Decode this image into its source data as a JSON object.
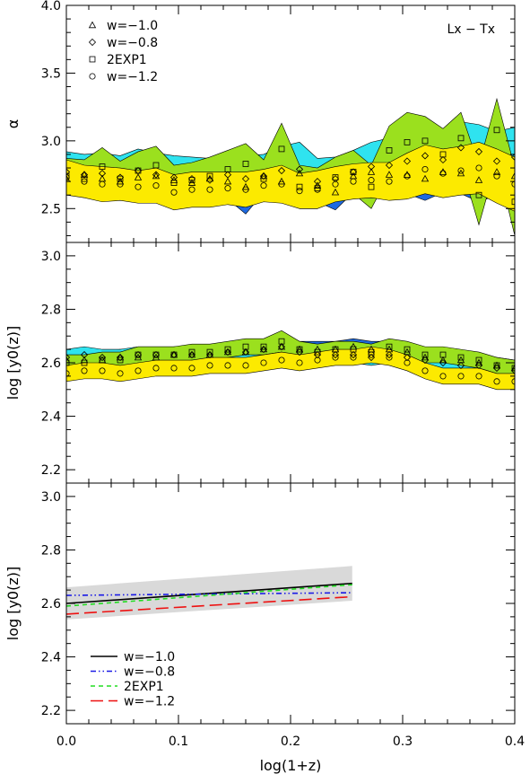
{
  "chart_data": [
    {
      "type": "area",
      "panel": "top",
      "xlim": [
        0.0,
        0.4
      ],
      "ylim": [
        2.25,
        4.0
      ],
      "ylabel": "α",
      "annotation": "Lx − Tx",
      "yticks": [
        "2.5",
        "3.0",
        "3.5",
        "4.0"
      ],
      "ytick_values": [
        2.5,
        3.0,
        3.5,
        4.0
      ],
      "legend": {
        "placement": "top-left",
        "entries": [
          {
            "label": "w=−1.0",
            "marker": "triangle"
          },
          {
            "label": "w=−0.8",
            "marker": "diamond"
          },
          {
            "label": "2EXP1",
            "marker": "square"
          },
          {
            "label": "w=−1.2",
            "marker": "circle"
          }
        ]
      },
      "x": [
        0.0,
        0.016,
        0.032,
        0.048,
        0.064,
        0.08,
        0.096,
        0.112,
        0.128,
        0.144,
        0.16,
        0.176,
        0.192,
        0.208,
        0.224,
        0.24,
        0.256,
        0.272,
        0.288,
        0.304,
        0.32,
        0.336,
        0.352,
        0.368,
        0.384,
        0.4
      ],
      "series": [
        {
          "name": "w=−1.0",
          "color": "#1e6ae0",
          "marker": "triangle",
          "values": [
            2.72,
            2.75,
            2.72,
            2.7,
            2.73,
            2.74,
            2.71,
            2.69,
            2.72,
            2.7,
            2.66,
            2.74,
            2.7,
            2.76,
            2.67,
            2.62,
            2.74,
            2.77,
            2.75,
            2.75,
            2.72,
            2.77,
            2.76,
            2.71,
            2.77,
            2.74
          ],
          "band_half_width": [
            0.11,
            0.11,
            0.11,
            0.12,
            0.11,
            0.12,
            0.12,
            0.11,
            0.12,
            0.13,
            0.2,
            0.12,
            0.14,
            0.16,
            0.12,
            0.13,
            0.12,
            0.14,
            0.13,
            0.14,
            0.16,
            0.15,
            0.15,
            0.16,
            0.17,
            0.16
          ]
        },
        {
          "name": "w=−0.8",
          "color": "#2fe3ef",
          "marker": "diamond",
          "values": [
            2.77,
            2.75,
            2.76,
            2.73,
            2.78,
            2.75,
            2.73,
            2.72,
            2.71,
            2.75,
            2.72,
            2.74,
            2.78,
            2.79,
            2.7,
            2.72,
            2.77,
            2.81,
            2.82,
            2.85,
            2.89,
            2.86,
            2.95,
            2.92,
            2.85,
            2.88
          ],
          "band_half_width": [
            0.15,
            0.15,
            0.15,
            0.16,
            0.16,
            0.16,
            0.16,
            0.16,
            0.16,
            0.17,
            0.17,
            0.16,
            0.18,
            0.2,
            0.17,
            0.16,
            0.16,
            0.18,
            0.2,
            0.22,
            0.2,
            0.2,
            0.19,
            0.2,
            0.22,
            0.22
          ]
        },
        {
          "name": "2EXP1",
          "color": "#9be01e",
          "marker": "square",
          "values": [
            2.74,
            2.72,
            2.81,
            2.72,
            2.78,
            2.82,
            2.69,
            2.71,
            2.74,
            2.79,
            2.83,
            2.72,
            2.94,
            2.66,
            2.65,
            2.73,
            2.77,
            2.66,
            2.93,
            2.99,
            3.0,
            2.9,
            3.02,
            2.6,
            3.08,
            2.55
          ],
          "band_half_width": [
            0.13,
            0.14,
            0.14,
            0.13,
            0.14,
            0.14,
            0.13,
            0.13,
            0.14,
            0.14,
            0.15,
            0.14,
            0.19,
            0.16,
            0.15,
            0.15,
            0.16,
            0.16,
            0.18,
            0.22,
            0.18,
            0.19,
            0.19,
            0.22,
            0.23,
            0.25
          ]
        },
        {
          "name": "w=−1.2",
          "color": "#fcea00",
          "marker": "circle",
          "values": [
            2.73,
            2.7,
            2.68,
            2.68,
            2.66,
            2.67,
            2.62,
            2.64,
            2.64,
            2.65,
            2.64,
            2.67,
            2.68,
            2.63,
            2.64,
            2.68,
            2.7,
            2.71,
            2.7,
            2.74,
            2.79,
            2.76,
            2.78,
            2.8,
            2.74,
            2.68
          ],
          "band_half_width": [
            0.13,
            0.12,
            0.13,
            0.12,
            0.12,
            0.13,
            0.13,
            0.13,
            0.13,
            0.12,
            0.13,
            0.12,
            0.14,
            0.13,
            0.14,
            0.13,
            0.13,
            0.13,
            0.14,
            0.17,
            0.18,
            0.18,
            0.18,
            0.19,
            0.2,
            0.2
          ]
        }
      ]
    },
    {
      "type": "area",
      "panel": "middle",
      "xlim": [
        0.0,
        0.4
      ],
      "ylim": [
        2.15,
        3.05
      ],
      "ylabel": "log [y0(z)]",
      "yticks": [
        "2.2",
        "2.4",
        "2.6",
        "2.8",
        "3.0"
      ],
      "ytick_values": [
        2.2,
        2.4,
        2.6,
        2.8,
        3.0
      ],
      "x": [
        0.0,
        0.016,
        0.032,
        0.048,
        0.064,
        0.08,
        0.096,
        0.112,
        0.128,
        0.144,
        0.16,
        0.176,
        0.192,
        0.208,
        0.224,
        0.24,
        0.256,
        0.272,
        0.288,
        0.304,
        0.32,
        0.336,
        0.352,
        0.368,
        0.384,
        0.4
      ],
      "series": [
        {
          "name": "w=−1.0",
          "color": "#1e6ae0",
          "marker": "triangle",
          "values": [
            2.61,
            2.61,
            2.61,
            2.62,
            2.62,
            2.62,
            2.63,
            2.63,
            2.63,
            2.64,
            2.64,
            2.65,
            2.66,
            2.65,
            2.65,
            2.65,
            2.66,
            2.65,
            2.65,
            2.64,
            2.62,
            2.61,
            2.61,
            2.6,
            2.59,
            2.58
          ],
          "band_half_width": [
            0.03,
            0.03,
            0.03,
            0.03,
            0.03,
            0.03,
            0.03,
            0.03,
            0.03,
            0.03,
            0.03,
            0.03,
            0.03,
            0.03,
            0.03,
            0.03,
            0.03,
            0.03,
            0.03,
            0.03,
            0.03,
            0.03,
            0.03,
            0.03,
            0.03,
            0.03
          ]
        },
        {
          "name": "w=−0.8",
          "color": "#2fe3ef",
          "marker": "diamond",
          "values": [
            2.62,
            2.63,
            2.62,
            2.62,
            2.63,
            2.63,
            2.63,
            2.63,
            2.63,
            2.64,
            2.64,
            2.65,
            2.66,
            2.64,
            2.63,
            2.63,
            2.63,
            2.62,
            2.63,
            2.62,
            2.61,
            2.6,
            2.59,
            2.59,
            2.58,
            2.57
          ],
          "band_half_width": [
            0.03,
            0.03,
            0.03,
            0.03,
            0.03,
            0.03,
            0.03,
            0.03,
            0.03,
            0.03,
            0.03,
            0.03,
            0.03,
            0.03,
            0.03,
            0.03,
            0.03,
            0.03,
            0.03,
            0.03,
            0.03,
            0.03,
            0.03,
            0.03,
            0.03,
            0.03
          ]
        },
        {
          "name": "2EXP1",
          "color": "#9be01e",
          "marker": "square",
          "values": [
            2.6,
            2.6,
            2.61,
            2.61,
            2.63,
            2.63,
            2.63,
            2.64,
            2.64,
            2.65,
            2.66,
            2.66,
            2.68,
            2.65,
            2.64,
            2.65,
            2.65,
            2.64,
            2.66,
            2.65,
            2.63,
            2.63,
            2.62,
            2.61,
            2.59,
            2.58
          ],
          "band_half_width": [
            0.03,
            0.03,
            0.03,
            0.03,
            0.03,
            0.03,
            0.03,
            0.03,
            0.03,
            0.03,
            0.03,
            0.03,
            0.04,
            0.03,
            0.03,
            0.03,
            0.03,
            0.03,
            0.03,
            0.03,
            0.03,
            0.03,
            0.03,
            0.03,
            0.03,
            0.03
          ]
        },
        {
          "name": "w=−1.2",
          "color": "#fcea00",
          "marker": "circle",
          "values": [
            2.56,
            2.57,
            2.57,
            2.56,
            2.57,
            2.58,
            2.58,
            2.58,
            2.59,
            2.59,
            2.59,
            2.6,
            2.61,
            2.6,
            2.61,
            2.62,
            2.62,
            2.63,
            2.62,
            2.6,
            2.57,
            2.55,
            2.55,
            2.55,
            2.53,
            2.53
          ],
          "band_half_width": [
            0.03,
            0.03,
            0.03,
            0.03,
            0.03,
            0.03,
            0.03,
            0.03,
            0.03,
            0.03,
            0.03,
            0.03,
            0.03,
            0.03,
            0.03,
            0.03,
            0.03,
            0.03,
            0.03,
            0.03,
            0.03,
            0.03,
            0.03,
            0.03,
            0.03,
            0.03
          ]
        }
      ]
    },
    {
      "type": "line",
      "panel": "bottom",
      "xlim": [
        0.0,
        0.4
      ],
      "ylim": [
        2.15,
        3.05
      ],
      "xlabel": "log(1+z)",
      "ylabel": "log [y0(z)]",
      "xticks": [
        "0.0",
        "0.1",
        "0.2",
        "0.3",
        "0.4"
      ],
      "xtick_values": [
        0.0,
        0.1,
        0.2,
        0.3,
        0.4
      ],
      "yticks": [
        "2.2",
        "2.4",
        "2.6",
        "2.8",
        "3.0"
      ],
      "ytick_values": [
        2.2,
        2.4,
        2.6,
        2.8,
        3.0
      ],
      "band": {
        "color": "#d9d9d9",
        "x": [
          0.0,
          0.255
        ],
        "lower": [
          2.54,
          2.61
        ],
        "upper": [
          2.66,
          2.74
        ]
      },
      "legend": {
        "placement": "bottom-left",
        "entries": [
          {
            "label": "w=−1.0",
            "color": "#000000",
            "dash": "solid"
          },
          {
            "label": "w=−0.8",
            "color": "#1a1ae6",
            "dash": "dash-dot"
          },
          {
            "label": "2EXP1",
            "color": "#22dd22",
            "dash": "dashed"
          },
          {
            "label": "w=−1.2",
            "color": "#ee1111",
            "dash": "long-dash"
          }
        ]
      },
      "series": [
        {
          "name": "w=−1.0",
          "x": [
            0.0,
            0.255
          ],
          "values": [
            2.6,
            2.675
          ],
          "color": "#000000",
          "dash": "solid"
        },
        {
          "name": "w=−0.8",
          "x": [
            0.0,
            0.255
          ],
          "values": [
            2.63,
            2.64
          ],
          "color": "#1a1ae6",
          "dash": "dash-dot"
        },
        {
          "name": "2EXP1",
          "x": [
            0.0,
            0.255
          ],
          "values": [
            2.59,
            2.67
          ],
          "color": "#22dd22",
          "dash": "dashed"
        },
        {
          "name": "w=−1.2",
          "x": [
            0.0,
            0.255
          ],
          "values": [
            2.56,
            2.625
          ],
          "color": "#ee1111",
          "dash": "long-dash"
        }
      ]
    }
  ]
}
